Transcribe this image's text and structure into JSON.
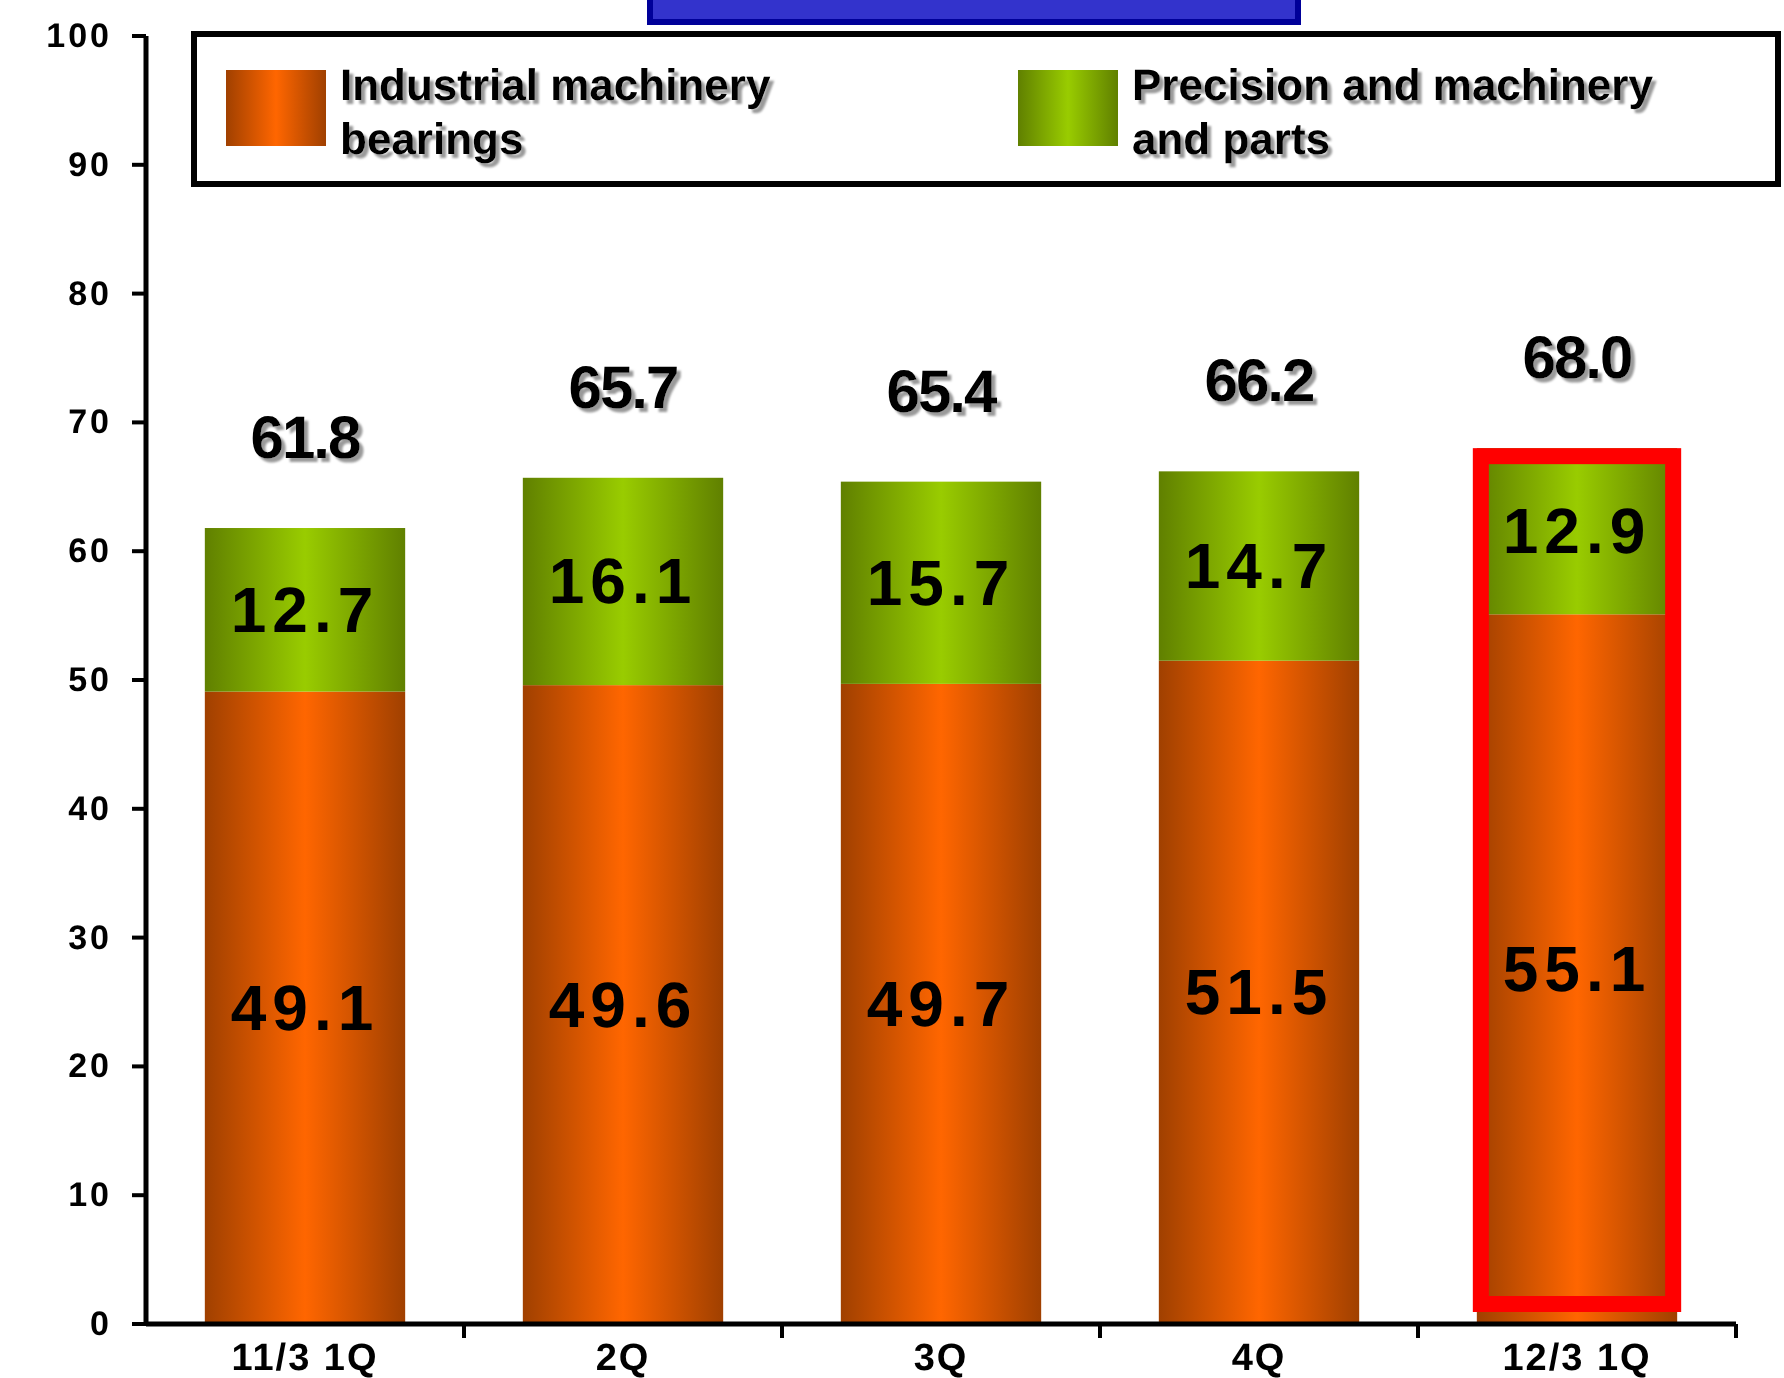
{
  "chart_data": {
    "type": "bar",
    "stacked": true,
    "categories": [
      "11/3 1Q",
      "2Q",
      "3Q",
      "4Q",
      "12/3 1Q"
    ],
    "series": [
      {
        "name": "Industrial machinery bearings",
        "color": "#ff6600",
        "values": [
          49.1,
          49.6,
          49.7,
          51.5,
          55.1
        ]
      },
      {
        "name": "Precision and machinery and parts",
        "color": "#99cc00",
        "values": [
          12.7,
          16.1,
          15.7,
          14.7,
          12.9
        ]
      }
    ],
    "ylim": [
      0,
      100
    ],
    "yticks": [
      0,
      10,
      20,
      30,
      40,
      50,
      60,
      70,
      80,
      90,
      100
    ],
    "data_labels": true,
    "totals": [
      "61.8",
      "65.7",
      "65.4",
      "66.2",
      "68.0"
    ],
    "legend": "top"
  }
}
